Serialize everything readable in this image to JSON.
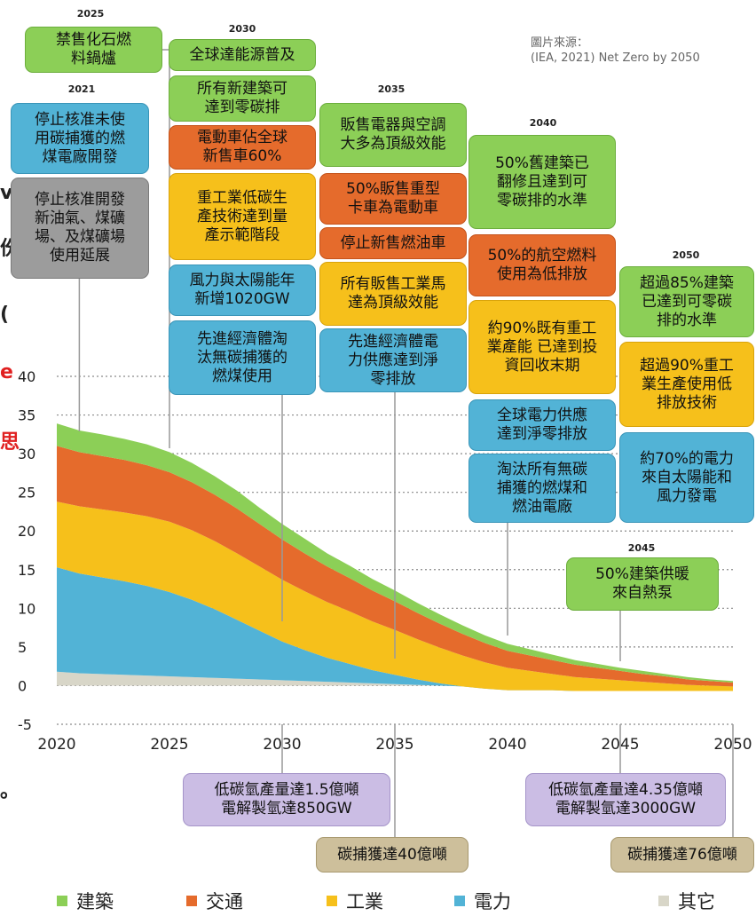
{
  "source_note": "圖片來源：\n(IEA, 2021) Net Zero by 2050",
  "edge_fragments": [
    "v",
    "份",
    "(",
    "e",
    "思",
    "。"
  ],
  "colors": {
    "building": "#8ccf57",
    "transport": "#e56b2c",
    "industry": "#f6c01b",
    "power": "#52b3d6",
    "other": "#d8d6c8"
  },
  "chart_data": {
    "type": "area",
    "stacked": true,
    "x": [
      2020,
      2021,
      2022,
      2023,
      2024,
      2025,
      2026,
      2027,
      2028,
      2029,
      2030,
      2031,
      2032,
      2033,
      2034,
      2035,
      2036,
      2037,
      2038,
      2039,
      2040,
      2041,
      2042,
      2043,
      2044,
      2045,
      2046,
      2047,
      2048,
      2049,
      2050
    ],
    "series": [
      {
        "name": "其它",
        "key": "other",
        "values": [
          1.8,
          1.6,
          1.5,
          1.4,
          1.3,
          1.2,
          1.1,
          1.0,
          0.9,
          0.8,
          0.7,
          0.6,
          0.5,
          0.4,
          0.3,
          0.2,
          0.1,
          0.0,
          -0.1,
          -0.2,
          -0.3,
          -0.3,
          -0.3,
          -0.4,
          -0.4,
          -0.4,
          -0.4,
          -0.4,
          -0.4,
          -0.4,
          -0.4
        ]
      },
      {
        "name": "電力",
        "key": "power",
        "values": [
          13.5,
          12.9,
          12.5,
          12.1,
          11.6,
          10.9,
          10.0,
          8.9,
          7.6,
          6.3,
          5.0,
          4.0,
          3.1,
          2.4,
          1.7,
          1.2,
          0.7,
          0.3,
          0.0,
          -0.2,
          -0.3,
          -0.3,
          -0.3,
          -0.3,
          -0.3,
          -0.3,
          -0.3,
          -0.3,
          -0.3,
          -0.3,
          -0.3
        ]
      },
      {
        "name": "工業",
        "key": "industry",
        "values": [
          8.5,
          8.7,
          8.8,
          8.9,
          9.0,
          9.1,
          9.0,
          8.8,
          8.6,
          8.3,
          8.0,
          7.6,
          7.2,
          6.8,
          6.3,
          5.8,
          5.2,
          4.6,
          4.0,
          3.4,
          2.9,
          2.5,
          2.1,
          1.8,
          1.6,
          1.4,
          1.2,
          1.0,
          0.8,
          0.7,
          0.6
        ]
      },
      {
        "name": "交通",
        "key": "transport",
        "values": [
          7.2,
          7.0,
          6.9,
          6.8,
          6.6,
          6.4,
          6.2,
          6.0,
          5.8,
          5.5,
          5.2,
          4.9,
          4.6,
          4.3,
          4.0,
          3.7,
          3.4,
          3.1,
          2.8,
          2.5,
          2.2,
          2.0,
          1.8,
          1.6,
          1.4,
          1.2,
          1.0,
          0.9,
          0.7,
          0.6,
          0.5
        ]
      },
      {
        "name": "建築",
        "key": "building",
        "values": [
          2.9,
          2.8,
          2.8,
          2.7,
          2.7,
          2.6,
          2.5,
          2.4,
          2.3,
          2.1,
          2.0,
          1.9,
          1.7,
          1.6,
          1.5,
          1.4,
          1.3,
          1.2,
          1.1,
          1.0,
          0.9,
          0.8,
          0.7,
          0.6,
          0.5,
          0.4,
          0.4,
          0.3,
          0.3,
          0.2,
          0.2
        ]
      }
    ],
    "xlim": [
      2020,
      2050
    ],
    "ylim": [
      -5,
      40
    ],
    "xticks": [
      2020,
      2025,
      2030,
      2035,
      2040,
      2045,
      2050
    ],
    "yticks": [
      -5,
      0,
      5,
      10,
      15,
      20,
      25,
      30,
      35,
      40
    ],
    "grid": "horizontal dotted",
    "legend_position": "bottom",
    "annotations_above": [
      {
        "year": "2025",
        "items": [
          {
            "text": "禁售化石燃\n料鍋爐",
            "color": "green"
          }
        ]
      },
      {
        "year": "2021",
        "items": [
          {
            "text": "停止核准未使\n用碳捕獲的燃\n煤電廠開發",
            "color": "blue"
          },
          {
            "text": "停止核准開發\n新油氣、煤礦\n場、及煤礦場\n使用延展",
            "color": "gray"
          }
        ]
      },
      {
        "year": "2030",
        "items": [
          {
            "text": "全球達能源普及",
            "color": "green"
          },
          {
            "text": "所有新建築可\n達到零碳排",
            "color": "green"
          },
          {
            "text": "電動車佔全球\n新售車60%",
            "color": "orange"
          },
          {
            "text": "重工業低碳生\n產技術達到量\n產示範階段",
            "color": "yellow"
          },
          {
            "text": "風力與太陽能年\n新增1020GW",
            "color": "blue"
          },
          {
            "text": "先進經濟體淘\n汰無碳捕獲的\n燃煤使用",
            "color": "blue"
          }
        ]
      },
      {
        "year": "2035",
        "items": [
          {
            "text": "販售電器與空調\n大多為頂級效能",
            "color": "green"
          },
          {
            "text": "50%販售重型\n卡車為電動車",
            "color": "orange"
          },
          {
            "text": "停止新售燃油車",
            "color": "orange"
          },
          {
            "text": "所有販售工業馬\n達為頂級效能",
            "color": "yellow"
          },
          {
            "text": "先進經濟體電\n力供應達到淨\n零排放",
            "color": "blue"
          }
        ]
      },
      {
        "year": "2040",
        "items": [
          {
            "text": "50%舊建築已\n翻修且達到可\n零碳排的水準",
            "color": "green"
          },
          {
            "text": "50%的航空燃料\n使用為低排放",
            "color": "orange"
          },
          {
            "text": "約90%既有重工\n業產能 已達到投\n資回收末期",
            "color": "yellow"
          },
          {
            "text": "全球電力供應\n達到淨零排放",
            "color": "blue"
          },
          {
            "text": "淘汰所有無碳\n捕獲的燃煤和\n燃油電廠",
            "color": "blue"
          }
        ]
      },
      {
        "year": "2050",
        "items": [
          {
            "text": "超過85%建築\n已達到可零碳\n排的水準",
            "color": "green"
          },
          {
            "text": "超過90%重工\n業生產使用低\n排放技術",
            "color": "yellow"
          },
          {
            "text": "約70%的電力\n來自太陽能和\n風力發電",
            "color": "blue"
          }
        ]
      },
      {
        "year": "2045",
        "items": [
          {
            "text": "50%建築供暖\n來自熱泵",
            "color": "green"
          }
        ]
      }
    ],
    "annotations_below": [
      {
        "year": 2030,
        "text": "低碳氫產量達1.5億噸\n電解製氫達850GW",
        "color": "purple"
      },
      {
        "year": 2035,
        "text": "碳捕獲達40億噸",
        "color": "tan"
      },
      {
        "year": 2045,
        "text": "低碳氫產量達4.35億噸\n電解製氫達3000GW",
        "color": "purple"
      },
      {
        "year": 2050,
        "text": "碳捕獲達76億噸",
        "color": "tan"
      }
    ]
  }
}
